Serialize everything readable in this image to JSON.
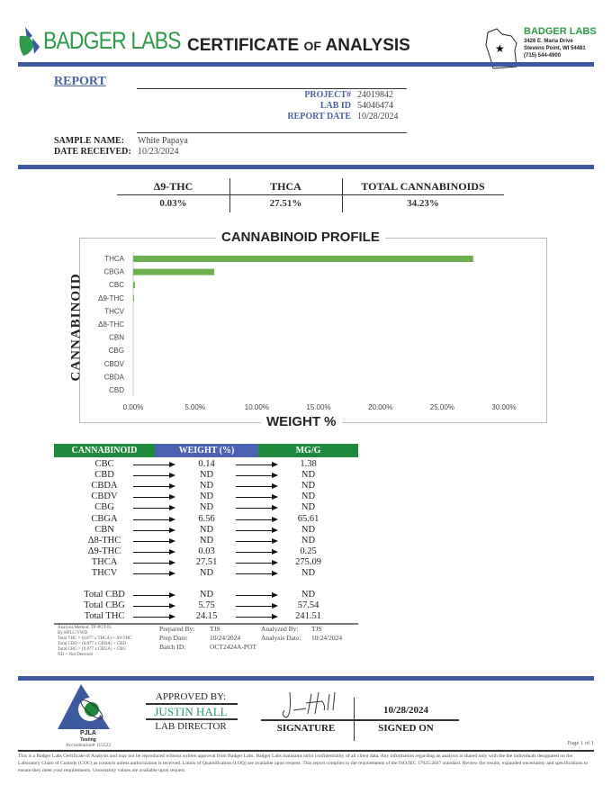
{
  "header": {
    "brand": "BADGER LABS",
    "title_main": "CERTIFICATE",
    "title_of": "OF",
    "title_end": "ANALYSIS",
    "address": {
      "name": "BADGER LABS",
      "street": "3426 E. Maria Drive",
      "city": "Stevens Point, WI 54481",
      "phone": "(715) 544-4900"
    }
  },
  "report": {
    "heading": "REPORT",
    "project_label": "PROJECT#",
    "project": "24019842",
    "labid_label": "LAB ID",
    "labid": "54046474",
    "date_label": "REPORT DATE",
    "date": "10/28/2024",
    "sample_label": "SAMPLE NAME:",
    "sample": "White Papaya",
    "received_label": "DATE RECEIVED:",
    "received": "10/23/2024"
  },
  "summary": {
    "headers": [
      "Δ9-THC",
      "THCA",
      "TOTAL CANNABINOIDS"
    ],
    "values": [
      "0.03%",
      "27.51%",
      "34.23%"
    ]
  },
  "chart_data": {
    "type": "bar",
    "orientation": "horizontal",
    "title": "CANNABINOID PROFILE",
    "ylabel": "CANNABINOID",
    "xlabel": "WEIGHT %",
    "categories": [
      "THCA",
      "CBGA",
      "CBC",
      "Δ9-THC",
      "THCV",
      "Δ8-THC",
      "CBN",
      "CBG",
      "CBDV",
      "CBDA",
      "CBD"
    ],
    "values": [
      27.51,
      6.56,
      0.14,
      0.03,
      0,
      0,
      0,
      0,
      0,
      0,
      0
    ],
    "xlim": [
      0,
      30
    ],
    "xticks": [
      "0.00%",
      "5.00%",
      "10.00%",
      "15.00%",
      "20.00%",
      "25.00%",
      "30.00%"
    ],
    "bar_color": "#6ab04c",
    "grid": false
  },
  "table": {
    "headers": [
      "CANNABINOID",
      "WEIGHT (%)",
      "MG/G"
    ],
    "header_colors": [
      "#1f8a3c",
      "#4a62b0",
      "#1f8a3c"
    ],
    "rows": [
      [
        "CBC",
        "0.14",
        "1.38"
      ],
      [
        "CBD",
        "ND",
        "ND"
      ],
      [
        "CBDA",
        "ND",
        "ND"
      ],
      [
        "CBDV",
        "ND",
        "ND"
      ],
      [
        "CBG",
        "ND",
        "ND"
      ],
      [
        "CBGA",
        "6.56",
        "65.61"
      ],
      [
        "CBN",
        "ND",
        "ND"
      ],
      [
        "Δ8-THC",
        "ND",
        "ND"
      ],
      [
        "Δ9-THC",
        "0.03",
        "0.25"
      ],
      [
        "THCA",
        "27.51",
        "275.09"
      ],
      [
        "THCV",
        "ND",
        "ND"
      ]
    ],
    "totals": [
      [
        "Total CBD",
        "ND",
        "ND"
      ],
      [
        "Total CBG",
        "5.75",
        "57.54"
      ],
      [
        "Total THC",
        "24.15",
        "241.51"
      ]
    ]
  },
  "notes": {
    "method": [
      "Analysis Method: TP-POT-05",
      "By HPLC/VWD",
      "Total THC = (0.877 x THCA) + Δ9-THC",
      "Total CBD = (0.877 x CBDA) + CBD",
      "Total CBG = (0.877 x CBGA) + CBG",
      "ND = Not Detected"
    ],
    "prepared_label": "Prepared By:",
    "prepared": "TJS",
    "prep_date_label": "Prep Date:",
    "prep_date": "10/24/2024",
    "batch_label": "Batch ID:",
    "batch": "OCT2424A-POT",
    "analyzed_label": "Analyzed By:",
    "analyzed": "TJS",
    "analysis_date_label": "Analysis Date:",
    "analysis_date": "10/24/2024"
  },
  "footer": {
    "pjla": "PJLA",
    "testing": "Testing",
    "accreditation": "Accreditation# 115522",
    "approved_label": "APPROVED BY:",
    "approver": "JUSTIN HALL",
    "approver_title": "LAB DIRECTOR",
    "signature_label": "SIGNATURE",
    "signed_date": "10/28/2024",
    "signed_label": "SIGNED ON",
    "page": "Page 1 of 1",
    "disclaimer": "This is a Badger Labs Certificate of Analysis and may not be reproduced without written approval from Badger Labs. Badger Labs maintains strict confidentiality of all client data. Any information regarding an analysis is shared only with the the individuals designated on the Laboratory Chain of Custody (COC) as contacts unless authorization is received. Limits of Quantification (LOQ) are available upon request. This report complies to the requirements of the ISO/IEC 17025:2017 standard. Review the results, expanded uncertainty and specifications to ensure they meet your requirements. Uncertainty values are available upon request."
  }
}
